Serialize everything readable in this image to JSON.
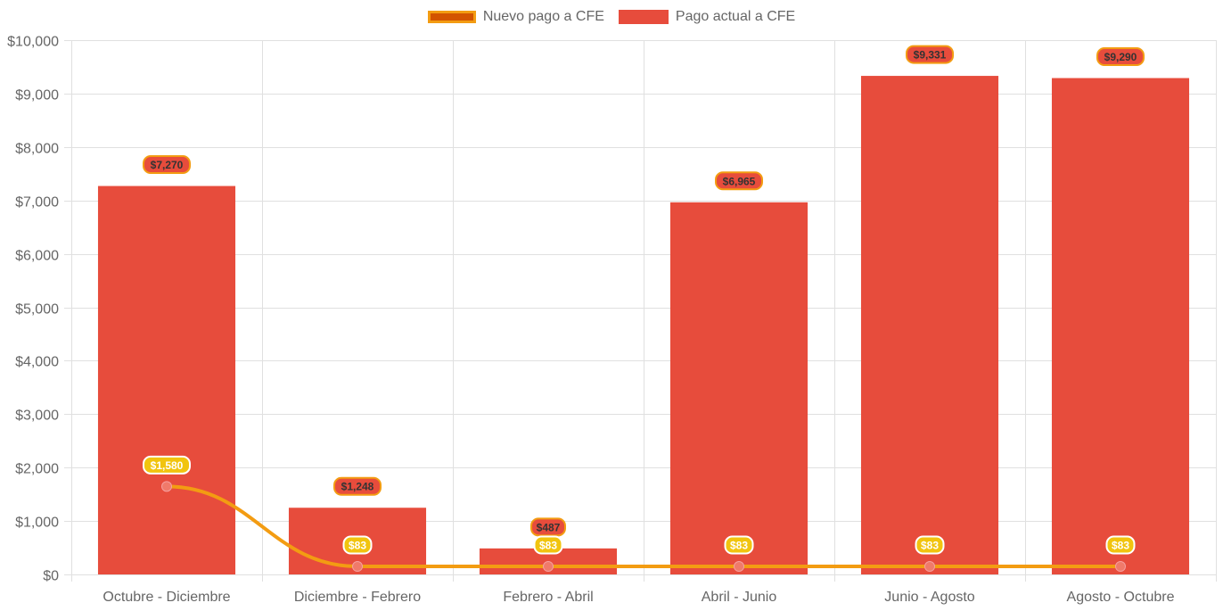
{
  "legend": {
    "line_label": "Nuevo pago a CFE",
    "bar_label": "Pago actual a CFE"
  },
  "colors": {
    "bar": "#e74c3c",
    "line": "#f39c12",
    "line_swatch_fill": "#d35400",
    "line_point": "#f07a6a",
    "bar_label_bg": "#e74c3c",
    "bar_label_border": "#f39c12",
    "line_label_bg": "#f1c40f",
    "grid": "#e0e0e0"
  },
  "chart_data": {
    "type": "bar",
    "categories": [
      "Octubre - Diciembre",
      "Diciembre - Febrero",
      "Febrero - Abril",
      "Abril - Junio",
      "Junio - Agosto",
      "Agosto - Octubre"
    ],
    "series": [
      {
        "name": "Nuevo pago a CFE",
        "type": "line",
        "values": [
          1580,
          83,
          83,
          83,
          83,
          83
        ],
        "labels": [
          "$1,580",
          "$83",
          "$83",
          "$83",
          "$83",
          "$83"
        ]
      },
      {
        "name": "Pago actual a CFE",
        "type": "bar",
        "values": [
          7270,
          1248,
          487,
          6965,
          9331,
          9290
        ],
        "labels": [
          "$7,270",
          "$1,248",
          "$487",
          "$6,965",
          "$9,331",
          "$9,290"
        ]
      }
    ],
    "yticks": [
      "$0",
      "$1,000",
      "$2,000",
      "$3,000",
      "$4,000",
      "$5,000",
      "$6,000",
      "$7,000",
      "$8,000",
      "$9,000",
      "$10,000"
    ],
    "ylim": [
      0,
      10000
    ],
    "grid": true,
    "legend_position": "top"
  }
}
